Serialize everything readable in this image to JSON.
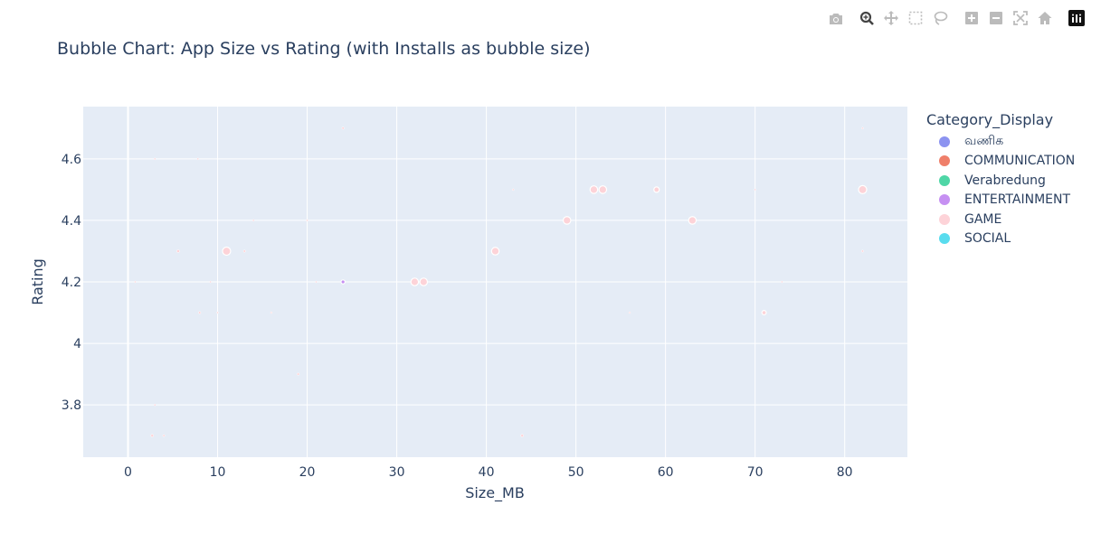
{
  "modebar": {
    "buttons": [
      "camera-icon",
      "zoom-icon",
      "pan-icon",
      "box-select-icon",
      "lasso-icon",
      "zoom-in-icon",
      "zoom-out-icon",
      "autoscale-icon",
      "reset-axes-icon",
      "plotly-logo-icon"
    ]
  },
  "chart_data": {
    "type": "scatter",
    "title": "Bubble Chart: App Size vs Rating (with Installs as bubble size)",
    "xlabel": "Size_MB",
    "ylabel": "Rating",
    "xlim": [
      -5,
      87
    ],
    "ylim": [
      3.63,
      4.77
    ],
    "xticks": [
      0,
      10,
      20,
      30,
      40,
      50,
      60,
      70,
      80
    ],
    "yticks": [
      3.8,
      4,
      4.2,
      4.4,
      4.6
    ],
    "ytick_labels": [
      "3.8",
      "4",
      "4.2",
      "4.4",
      "4.6"
    ],
    "grid": true,
    "legend_title": "Category_Display",
    "legend_position": "right",
    "series": [
      {
        "name": "வணிக",
        "color": "#8c93f0",
        "points": []
      },
      {
        "name": "COMMUNICATION",
        "color": "#ef7f6a",
        "points": []
      },
      {
        "name": "Verabredung",
        "color": "#4fd6a6",
        "points": []
      },
      {
        "name": "ENTERTAINMENT",
        "color": "#c690f2",
        "points": [
          {
            "x": 24,
            "y": 4.2,
            "r": 2.2
          }
        ]
      },
      {
        "name": "GAME",
        "color": "#fdd3d8",
        "points": [
          {
            "x": 11,
            "y": 4.3,
            "r": 4.5
          },
          {
            "x": 32,
            "y": 4.2,
            "r": 4.2
          },
          {
            "x": 33,
            "y": 4.2,
            "r": 4.2
          },
          {
            "x": 41,
            "y": 4.3,
            "r": 4.2
          },
          {
            "x": 49,
            "y": 4.4,
            "r": 4.2
          },
          {
            "x": 52,
            "y": 4.5,
            "r": 4.2
          },
          {
            "x": 53,
            "y": 4.5,
            "r": 4.2
          },
          {
            "x": 59,
            "y": 4.5,
            "r": 3.0
          },
          {
            "x": 63,
            "y": 4.4,
            "r": 4.2
          },
          {
            "x": 82,
            "y": 4.5,
            "r": 4.5
          },
          {
            "x": 71,
            "y": 4.1,
            "r": 2.4
          },
          {
            "x": 5.6,
            "y": 4.3,
            "r": 1.6
          },
          {
            "x": 13,
            "y": 4.3,
            "r": 1.3
          },
          {
            "x": 8,
            "y": 4.1,
            "r": 1.3
          },
          {
            "x": 10,
            "y": 4.1,
            "r": 1.0
          },
          {
            "x": 16,
            "y": 4.1,
            "r": 1.0
          },
          {
            "x": 24,
            "y": 4.7,
            "r": 1.3
          },
          {
            "x": 7.8,
            "y": 4.6,
            "r": 1.0
          },
          {
            "x": 19,
            "y": 3.9,
            "r": 1.3
          },
          {
            "x": 2.7,
            "y": 3.7,
            "r": 1.5
          },
          {
            "x": 4,
            "y": 3.7,
            "r": 1.2
          },
          {
            "x": 44,
            "y": 3.7,
            "r": 1.5
          },
          {
            "x": 82,
            "y": 4.3,
            "r": 1.2
          },
          {
            "x": 82,
            "y": 4.7,
            "r": 1.0
          },
          {
            "x": 70,
            "y": 4.5,
            "r": 1.0
          },
          {
            "x": 43,
            "y": 4.5,
            "r": 1.0
          },
          {
            "x": 56,
            "y": 4.1,
            "r": 1.0
          },
          {
            "x": 73,
            "y": 4.2,
            "r": 1.0
          },
          {
            "x": 21,
            "y": 4.2,
            "r": 1.0
          },
          {
            "x": 9.2,
            "y": 4.2,
            "r": 1.0
          },
          {
            "x": 0.8,
            "y": 4.2,
            "r": 1.0
          },
          {
            "x": 3,
            "y": 4.6,
            "r": 1.0
          },
          {
            "x": 20,
            "y": 4.4,
            "r": 1.0
          },
          {
            "x": 14,
            "y": 4.4,
            "r": 1.0
          },
          {
            "x": 3,
            "y": 3.8,
            "r": 1.0
          }
        ]
      },
      {
        "name": "SOCIAL",
        "color": "#59dcee",
        "points": []
      }
    ]
  }
}
